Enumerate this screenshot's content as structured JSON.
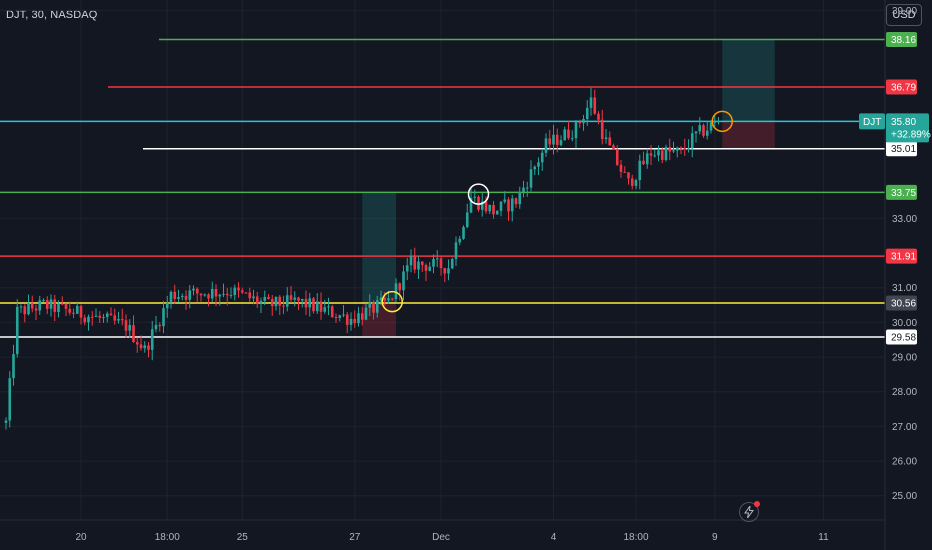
{
  "header": {
    "symbol": "DJT, 30, NASDAQ",
    "currency_button": "USD"
  },
  "colors": {
    "background": "#131722",
    "up": "#26a69a",
    "down": "#f23645",
    "green_level": "#4caf50",
    "red_level": "#f23645",
    "yellow_level": "#ffeb3b",
    "white_level": "#ffffff",
    "cyan_level": "#26c6da",
    "orange_circle": "#ff9800"
  },
  "chart_data": {
    "type": "candlestick",
    "title": "",
    "xlabel": "",
    "ylabel": "",
    "ylim": [
      24.3,
      39.3
    ],
    "y_ticks": [
      "39.00",
      "33.00",
      "31.00",
      "30.00",
      "29.00",
      "28.00",
      "27.00",
      "26.00",
      "25.00"
    ],
    "x_ticks": [
      "20",
      "18:00",
      "25",
      "27",
      "Dec",
      "4",
      "18:00",
      "9",
      "11"
    ],
    "levels": [
      {
        "value": 38.16,
        "label": "38.16",
        "color": "green"
      },
      {
        "value": 36.79,
        "label": "36.79",
        "color": "red"
      },
      {
        "value": 35.01,
        "label": "35.01",
        "color": "white"
      },
      {
        "value": 33.75,
        "label": "33.75",
        "color": "green"
      },
      {
        "value": 31.91,
        "label": "31.91",
        "color": "red"
      },
      {
        "value": 30.56,
        "label": "30.56",
        "color": "yellow"
      },
      {
        "value": 29.58,
        "label": "29.58",
        "color": "white"
      }
    ],
    "last_price": {
      "symbol": "DJT",
      "value": 35.8,
      "label": "35.80",
      "change": "+32.89%"
    },
    "anchors": [
      {
        "index": 0,
        "value": 27.1
      },
      {
        "index": 3,
        "value": 30.3
      },
      {
        "index": 10,
        "value": 30.5
      },
      {
        "index": 22,
        "value": 30.2
      },
      {
        "index": 32,
        "value": 29.9
      },
      {
        "index": 37,
        "value": 29.2
      },
      {
        "index": 44,
        "value": 30.8
      },
      {
        "index": 60,
        "value": 30.9
      },
      {
        "index": 70,
        "value": 30.5
      },
      {
        "index": 78,
        "value": 30.6
      },
      {
        "index": 92,
        "value": 30.1
      },
      {
        "index": 102,
        "value": 30.6
      },
      {
        "index": 108,
        "value": 31.7
      },
      {
        "index": 118,
        "value": 31.6
      },
      {
        "index": 124,
        "value": 33.6
      },
      {
        "index": 130,
        "value": 33.2
      },
      {
        "index": 136,
        "value": 33.5
      },
      {
        "index": 144,
        "value": 35.1
      },
      {
        "index": 152,
        "value": 35.6
      },
      {
        "index": 156,
        "value": 36.4
      },
      {
        "index": 160,
        "value": 35.2
      },
      {
        "index": 166,
        "value": 34.0
      },
      {
        "index": 172,
        "value": 34.9
      },
      {
        "index": 180,
        "value": 34.9
      },
      {
        "index": 184,
        "value": 35.4
      },
      {
        "index": 190,
        "value": 35.8
      }
    ],
    "circles": [
      {
        "index": 103,
        "value": 30.6,
        "color": "yellow"
      },
      {
        "index": 126,
        "value": 33.7,
        "color": "white"
      },
      {
        "index": 191,
        "value": 35.8,
        "color": "orange"
      }
    ],
    "positions": [
      {
        "start_index": 95,
        "end_index": 104,
        "entry": 30.56,
        "target": 33.75,
        "stop": 29.58
      },
      {
        "start_index": 191,
        "end_index": 205,
        "entry": 35.8,
        "target": 38.16,
        "stop": 35.01
      }
    ]
  }
}
